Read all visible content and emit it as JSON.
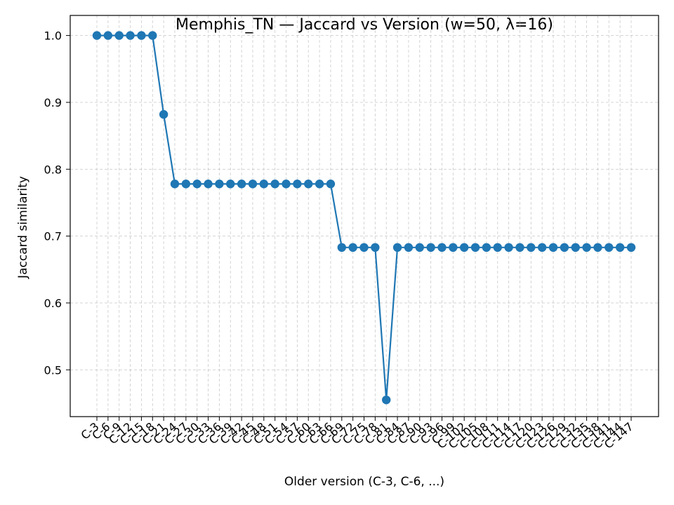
{
  "chart_data": {
    "type": "line",
    "title": "Memphis_TN — Jaccard vs Version (w=50, λ=16)",
    "xlabel": "Older version (C-3, C-6, ...)",
    "ylabel": "Jaccard similarity",
    "ylim": [
      0.43,
      1.03
    ],
    "yticks": [
      0.5,
      0.6,
      0.7,
      0.8,
      0.9,
      1.0
    ],
    "ytick_labels": [
      "0.5",
      "0.6",
      "0.7",
      "0.8",
      "0.9",
      "1.0"
    ],
    "grid": true,
    "line_color": "#1f77b4",
    "categories": [
      "C-3",
      "C-6",
      "C-9",
      "C-12",
      "C-15",
      "C-18",
      "C-21",
      "C-24",
      "C-27",
      "C-30",
      "C-33",
      "C-36",
      "C-39",
      "C-42",
      "C-45",
      "C-48",
      "C-51",
      "C-54",
      "C-57",
      "C-60",
      "C-63",
      "C-66",
      "C-69",
      "C-72",
      "C-75",
      "C-78",
      "C-81",
      "C-84",
      "C-87",
      "C-90",
      "C-93",
      "C-96",
      "C-99",
      "C-102",
      "C-105",
      "C-108",
      "C-111",
      "C-114",
      "C-117",
      "C-120",
      "C-123",
      "C-126",
      "C-129",
      "C-132",
      "C-135",
      "C-138",
      "C-141",
      "C-144",
      "C-147"
    ],
    "values": [
      1.0,
      1.0,
      1.0,
      1.0,
      1.0,
      1.0,
      0.882,
      0.778,
      0.778,
      0.778,
      0.778,
      0.778,
      0.778,
      0.778,
      0.778,
      0.778,
      0.778,
      0.778,
      0.778,
      0.778,
      0.778,
      0.778,
      0.683,
      0.683,
      0.683,
      0.683,
      0.455,
      0.683,
      0.683,
      0.683,
      0.683,
      0.683,
      0.683,
      0.683,
      0.683,
      0.683,
      0.683,
      0.683,
      0.683,
      0.683,
      0.683,
      0.683,
      0.683,
      0.683,
      0.683,
      0.683,
      0.683,
      0.683,
      0.683
    ]
  }
}
